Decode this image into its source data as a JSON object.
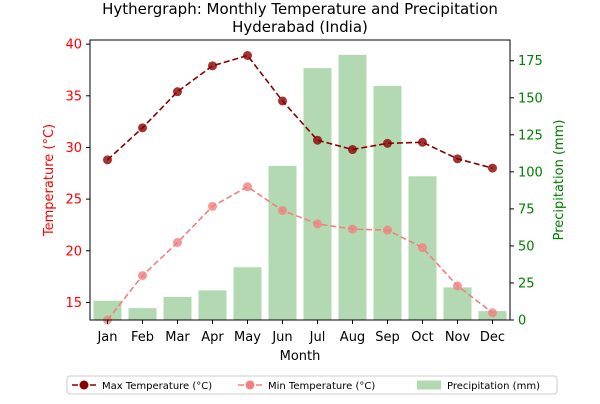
{
  "chart_data": {
    "type": "bar+line",
    "title": "Hythergraph: Monthly Temperature and Precipitation",
    "subtitle": "Hyderabad (India)",
    "xlabel": "Month",
    "ylabel_left": "Temperature (°C)",
    "ylabel_right": "Precipitation (mm)",
    "categories": [
      "Jan",
      "Feb",
      "Mar",
      "Apr",
      "May",
      "Jun",
      "Jul",
      "Aug",
      "Sep",
      "Oct",
      "Nov",
      "Dec"
    ],
    "y_left": {
      "ticks": [
        15,
        20,
        25,
        30,
        35,
        40
      ],
      "lim": [
        13.3,
        40.4
      ]
    },
    "y_right": {
      "ticks": [
        0,
        25,
        50,
        75,
        100,
        125,
        150,
        175
      ],
      "lim": [
        0,
        189
      ]
    },
    "series": [
      {
        "name": "Max Temperature (°C)",
        "kind": "line",
        "axis": "left",
        "style": "dashed",
        "color": "#8b0000",
        "values": [
          28.8,
          31.9,
          35.4,
          37.9,
          38.9,
          34.5,
          30.7,
          29.8,
          30.4,
          30.5,
          28.9,
          28.0
        ]
      },
      {
        "name": "Min Temperature (°C)",
        "kind": "line",
        "axis": "left",
        "style": "dashed",
        "color": "#f08080",
        "values": [
          13.3,
          17.6,
          20.8,
          24.3,
          26.2,
          23.9,
          22.6,
          22.1,
          22.0,
          20.3,
          16.6,
          14.0
        ]
      },
      {
        "name": "Precipitation (mm)",
        "kind": "bar",
        "axis": "right",
        "color": "#b2d9b2",
        "values": [
          13.0,
          8.0,
          15.6,
          20.0,
          35.6,
          104.0,
          170.0,
          179.0,
          158.0,
          97.0,
          22.0,
          6.0
        ]
      }
    ],
    "legend": {
      "placement": "bottom-center"
    },
    "colors": {
      "left_axis": "#ff0000",
      "right_axis": "#008000"
    },
    "grid": false
  }
}
